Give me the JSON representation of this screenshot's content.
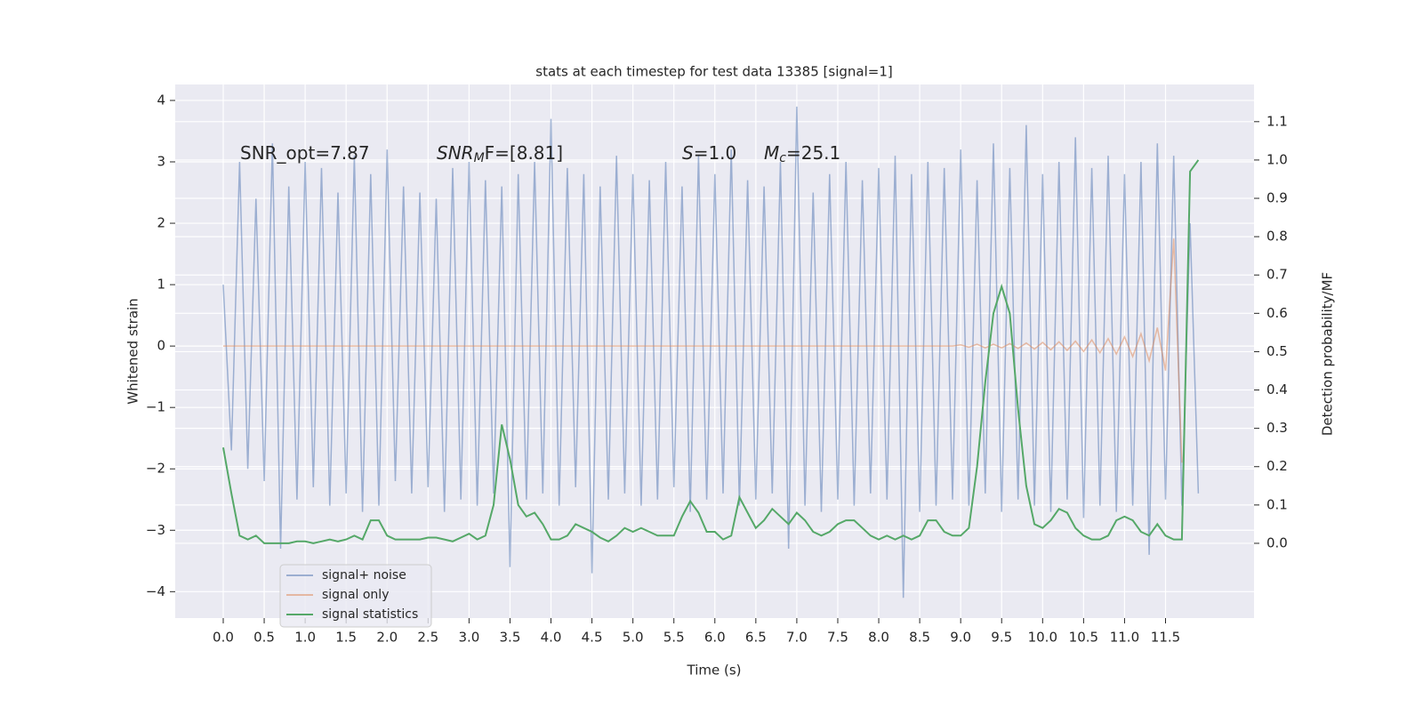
{
  "chart_data": {
    "type": "line",
    "title": "stats at each timestep for test data 13385 [signal=1]",
    "xlabel": "Time (s)",
    "ylabel": "Whitened strain",
    "y2label": "Detection probability/MF",
    "annotations": [
      {
        "text": "SNR_opt=7.87"
      },
      {
        "italic": "SNR",
        "sub": "M",
        "text": "F=[8.81]"
      },
      {
        "italic": "S",
        "text": "=1.0"
      },
      {
        "italic": "M",
        "sub": "c",
        "text": "=25.1"
      }
    ],
    "grid": true,
    "legend": "lower left",
    "xlim": [
      -0.586,
      12.58
    ],
    "ylim": [
      -4.43,
      4.26
    ],
    "y2lim": [
      -0.195,
      1.197
    ],
    "xticks": [
      {
        "value": 0,
        "label": "0.0"
      },
      0.5,
      {
        "value": 1,
        "label": "1.0"
      },
      1.5,
      {
        "value": 2,
        "label": "2.0"
      },
      2.5,
      {
        "value": 3,
        "label": "3.0"
      },
      3.5,
      {
        "value": 4,
        "label": "4.0"
      },
      4.5,
      {
        "value": 5,
        "label": "5.0"
      },
      5.5,
      {
        "value": 6,
        "label": "6.0"
      },
      6.5,
      {
        "value": 7,
        "label": "7.0"
      },
      7.5,
      {
        "value": 8,
        "label": "8.0"
      },
      8.5,
      {
        "value": 9,
        "label": "9.0"
      },
      9.5,
      {
        "value": 10,
        "label": "10.0"
      },
      10.5,
      {
        "value": 11,
        "label": "11.0"
      },
      11.5
    ],
    "yticks": [
      {
        "value": -4,
        "label": "−4"
      },
      {
        "value": -3,
        "label": "−3"
      },
      {
        "value": -2,
        "label": "−2"
      },
      {
        "value": -1,
        "label": "−1"
      },
      0,
      1,
      2,
      3,
      4
    ],
    "y2ticks": [
      {
        "value": 0,
        "label": "0.0"
      },
      0.1,
      0.2,
      0.3,
      0.4,
      0.5,
      0.6,
      0.7,
      0.8,
      0.9,
      {
        "value": 1,
        "label": "1.0"
      },
      1.1
    ],
    "x": [
      0.0,
      0.1,
      0.2,
      0.3,
      0.4,
      0.5,
      0.6,
      0.7,
      0.8,
      0.9,
      1.0,
      1.1,
      1.2,
      1.3,
      1.4,
      1.5,
      1.6,
      1.7,
      1.8,
      1.9,
      2.0,
      2.1,
      2.2,
      2.3,
      2.4,
      2.5,
      2.6,
      2.7,
      2.8,
      2.9,
      3.0,
      3.1,
      3.2,
      3.3,
      3.4,
      3.5,
      3.6,
      3.7,
      3.8,
      3.9,
      4.0,
      4.1,
      4.2,
      4.3,
      4.4,
      4.5,
      4.6,
      4.7,
      4.8,
      4.9,
      5.0,
      5.1,
      5.2,
      5.3,
      5.4,
      5.5,
      5.6,
      5.7,
      5.8,
      5.9,
      6.0,
      6.1,
      6.2,
      6.3,
      6.4,
      6.5,
      6.6,
      6.7,
      6.8,
      6.9,
      7.0,
      7.1,
      7.2,
      7.3,
      7.4,
      7.5,
      7.6,
      7.7,
      7.8,
      7.9,
      8.0,
      8.1,
      8.2,
      8.3,
      8.4,
      8.5,
      8.6,
      8.7,
      8.8,
      8.9,
      9.0,
      9.1,
      9.2,
      9.3,
      9.4,
      9.5,
      9.6,
      9.7,
      9.8,
      9.9,
      10.0,
      10.1,
      10.2,
      10.3,
      10.4,
      10.5,
      10.6,
      10.7,
      10.8,
      10.9,
      11.0,
      11.1,
      11.2,
      11.3,
      11.4,
      11.5,
      11.6,
      11.7,
      11.8,
      11.9
    ],
    "series": [
      {
        "name": "signal+ noise",
        "color": "#4c72b0",
        "values": [
          1.0,
          -1.7,
          3.0,
          -2.0,
          2.4,
          -2.2,
          3.3,
          -3.3,
          2.6,
          -2.5,
          3.0,
          -2.3,
          2.9,
          -2.6,
          2.5,
          -2.4,
          3.1,
          -2.7,
          2.8,
          -2.6,
          3.2,
          -2.2,
          2.6,
          -2.4,
          2.5,
          -2.3,
          2.4,
          -2.7,
          2.9,
          -2.5,
          3.0,
          -2.6,
          2.7,
          -2.4,
          2.6,
          -3.6,
          2.8,
          -2.5,
          3.0,
          -2.4,
          3.7,
          -2.6,
          2.9,
          -2.3,
          2.8,
          -3.7,
          2.6,
          -2.5,
          3.1,
          -2.4,
          2.8,
          -2.6,
          2.7,
          -2.5,
          3.0,
          -2.3,
          2.6,
          -2.7,
          3.1,
          -2.5,
          2.8,
          -2.4,
          3.2,
          -2.6,
          2.7,
          -2.5,
          2.6,
          -2.4,
          3.0,
          -3.3,
          3.9,
          -2.6,
          2.5,
          -2.7,
          2.8,
          -2.5,
          3.0,
          -2.6,
          2.7,
          -2.4,
          2.9,
          -2.5,
          3.1,
          -4.1,
          2.8,
          -2.7,
          3.0,
          -2.6,
          2.9,
          -2.5,
          3.2,
          -2.6,
          2.7,
          -2.4,
          3.3,
          -2.7,
          2.9,
          -2.5,
          3.6,
          -2.6,
          2.8,
          -2.7,
          3.0,
          -2.5,
          3.4,
          -2.8,
          2.9,
          -2.6,
          3.1,
          -2.7,
          2.8,
          -2.6,
          3.0,
          -3.4,
          3.3,
          -2.5,
          3.1,
          -2.6,
          2.0,
          -2.4
        ]
      },
      {
        "name": "signal only",
        "color": "#dd8452",
        "values": [
          0,
          0,
          0,
          0,
          0,
          0,
          0,
          0,
          0,
          0,
          0,
          0,
          0,
          0,
          0,
          0,
          0,
          0,
          0,
          0,
          0,
          0,
          0,
          0,
          0,
          0,
          0,
          0,
          0,
          0,
          0,
          0,
          0,
          0,
          0,
          0,
          0,
          0,
          0,
          0,
          0,
          0,
          0,
          0,
          0,
          0,
          0,
          0,
          0,
          0,
          0,
          0,
          0,
          0,
          0,
          0,
          0,
          0,
          0,
          0,
          0,
          0,
          0,
          0,
          0,
          0,
          0,
          0,
          0,
          0,
          0,
          0,
          0,
          0,
          0,
          0,
          0,
          0,
          0,
          0,
          0,
          0,
          0,
          0,
          0,
          0,
          0,
          0,
          0,
          0,
          0.02,
          -0.02,
          0.03,
          -0.03,
          0.03,
          -0.03,
          0.04,
          -0.04,
          0.05,
          -0.05,
          0.06,
          -0.06,
          0.07,
          -0.07,
          0.08,
          -0.09,
          0.1,
          -0.11,
          0.12,
          -0.13,
          0.15,
          -0.17,
          0.2,
          -0.24,
          0.3,
          -0.4,
          1.75,
          -1.9,
          null,
          null
        ]
      },
      {
        "name": "signal statistics",
        "color": "#55a868",
        "axis": "y2",
        "values": [
          0.25,
          0.13,
          0.02,
          0.01,
          0.02,
          0.0,
          0.0,
          0.0,
          0.0,
          0.005,
          0.005,
          0.0,
          0.005,
          0.01,
          0.005,
          0.01,
          0.02,
          0.01,
          0.06,
          0.06,
          0.02,
          0.01,
          0.01,
          0.01,
          0.01,
          0.015,
          0.015,
          0.01,
          0.005,
          0.015,
          0.025,
          0.01,
          0.02,
          0.1,
          0.31,
          0.22,
          0.1,
          0.07,
          0.08,
          0.05,
          0.01,
          0.01,
          0.02,
          0.05,
          0.04,
          0.03,
          0.015,
          0.005,
          0.02,
          0.04,
          0.03,
          0.04,
          0.03,
          0.02,
          0.02,
          0.02,
          0.07,
          0.11,
          0.08,
          0.03,
          0.03,
          0.01,
          0.02,
          0.12,
          0.08,
          0.04,
          0.06,
          0.09,
          0.07,
          0.05,
          0.08,
          0.06,
          0.03,
          0.02,
          0.03,
          0.05,
          0.06,
          0.06,
          0.04,
          0.02,
          0.01,
          0.02,
          0.01,
          0.02,
          0.01,
          0.02,
          0.06,
          0.06,
          0.03,
          0.02,
          0.02,
          0.04,
          0.2,
          0.42,
          0.6,
          0.67,
          0.6,
          0.35,
          0.15,
          0.05,
          0.04,
          0.06,
          0.09,
          0.08,
          0.04,
          0.02,
          0.01,
          0.01,
          0.02,
          0.06,
          0.07,
          0.06,
          0.03,
          0.02,
          0.05,
          0.02,
          0.01,
          0.01,
          0.97,
          1.0
        ]
      }
    ]
  }
}
